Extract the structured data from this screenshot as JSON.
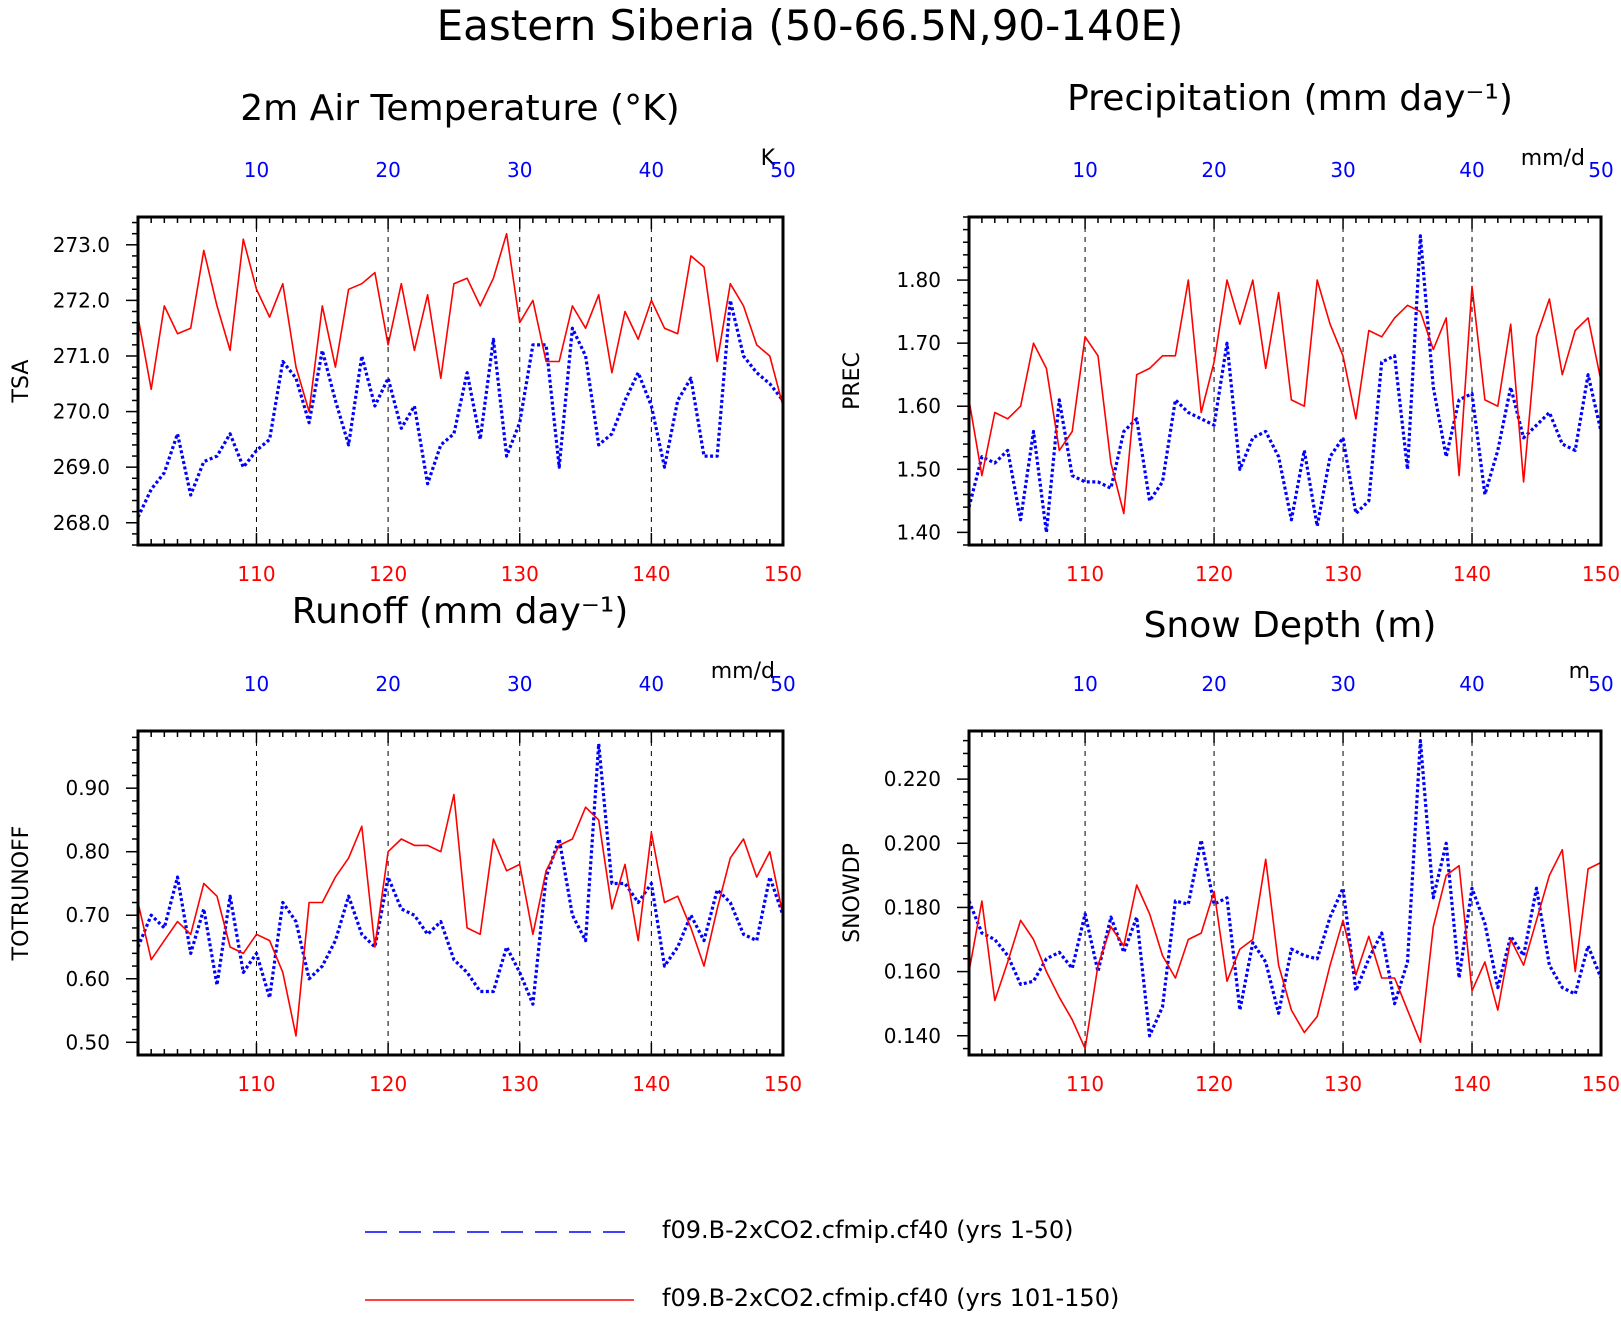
{
  "title": "Eastern Siberia (50-66.5N,90-140E)",
  "colors": {
    "blue_series": "#0000ff",
    "red_series": "#ff0000",
    "axis": "#000000"
  },
  "legend": [
    {
      "label": "f09.B-2xCO2.cfmip.cf40 (yrs 1-50)",
      "color": "#0000ff",
      "style": "dashed"
    },
    {
      "label": "f09.B-2xCO2.cfmip.cf40 (yrs 101-150)",
      "color": "#ff0000",
      "style": "solid"
    }
  ],
  "chart_data": [
    {
      "type": "line",
      "title": "2m Air Temperature (°K)",
      "ylabel": "TSA",
      "unit": "K",
      "x_bottom": {
        "range": [
          101,
          150
        ],
        "ticks": [
          "110",
          "120",
          "130",
          "140",
          "150"
        ]
      },
      "x_top": {
        "range": [
          1,
          50
        ],
        "ticks": [
          "10",
          "20",
          "30",
          "40",
          "50"
        ]
      },
      "ylim": [
        267.6,
        273.5
      ],
      "yticks": [
        "268.0",
        "269.0",
        "270.0",
        "271.0",
        "272.0",
        "273.0"
      ],
      "series": [
        {
          "color": "#0000ff",
          "style": "dotted",
          "values": [
            268.1,
            268.6,
            268.9,
            269.6,
            268.5,
            269.1,
            269.2,
            269.6,
            269.0,
            269.3,
            269.5,
            270.9,
            270.6,
            269.8,
            271.1,
            270.2,
            269.4,
            271.0,
            270.1,
            270.6,
            269.7,
            270.1,
            268.7,
            269.4,
            269.6,
            270.7,
            269.5,
            271.3,
            269.2,
            269.8,
            271.2,
            271.2,
            269.0,
            271.5,
            271.0,
            269.4,
            269.6,
            270.2,
            270.7,
            270.1,
            269.0,
            270.2,
            270.6,
            269.2,
            269.2,
            272.0,
            271.0,
            270.7,
            270.5,
            270.2
          ]
        },
        {
          "color": "#ff0000",
          "style": "solid",
          "values": [
            271.7,
            270.4,
            271.9,
            271.4,
            271.5,
            272.9,
            271.9,
            271.1,
            273.1,
            272.2,
            271.7,
            272.3,
            270.8,
            270.0,
            271.9,
            270.8,
            272.2,
            272.3,
            272.5,
            271.2,
            272.3,
            271.1,
            272.1,
            270.6,
            272.3,
            272.4,
            271.9,
            272.4,
            273.2,
            271.6,
            272.0,
            270.9,
            270.9,
            271.9,
            271.5,
            272.1,
            270.7,
            271.8,
            271.3,
            272.0,
            271.5,
            271.4,
            272.8,
            272.6,
            270.9,
            272.3,
            271.9,
            271.2,
            271.0,
            270.1
          ]
        }
      ]
    },
    {
      "type": "line",
      "title": "Precipitation (mm day⁻¹)",
      "ylabel": "PREC",
      "unit": "mm/d",
      "x_bottom": {
        "range": [
          101,
          150
        ],
        "ticks": [
          "110",
          "120",
          "130",
          "140",
          "150"
        ]
      },
      "x_top": {
        "range": [
          1,
          50
        ],
        "ticks": [
          "10",
          "20",
          "30",
          "40",
          "50"
        ]
      },
      "ylim": [
        1.38,
        1.9
      ],
      "yticks": [
        "1.40",
        "1.50",
        "1.60",
        "1.70",
        "1.80"
      ],
      "series": [
        {
          "color": "#0000ff",
          "style": "dotted",
          "values": [
            1.44,
            1.52,
            1.51,
            1.53,
            1.42,
            1.56,
            1.4,
            1.61,
            1.49,
            1.48,
            1.48,
            1.47,
            1.56,
            1.58,
            1.45,
            1.48,
            1.61,
            1.59,
            1.58,
            1.57,
            1.7,
            1.5,
            1.55,
            1.56,
            1.52,
            1.42,
            1.53,
            1.41,
            1.52,
            1.55,
            1.43,
            1.45,
            1.67,
            1.68,
            1.5,
            1.87,
            1.63,
            1.52,
            1.61,
            1.62,
            1.46,
            1.53,
            1.63,
            1.55,
            1.57,
            1.59,
            1.54,
            1.53,
            1.65,
            1.56
          ]
        },
        {
          "color": "#ff0000",
          "style": "solid",
          "values": [
            1.61,
            1.49,
            1.59,
            1.58,
            1.6,
            1.7,
            1.66,
            1.53,
            1.56,
            1.71,
            1.68,
            1.51,
            1.43,
            1.65,
            1.66,
            1.68,
            1.68,
            1.8,
            1.59,
            1.67,
            1.8,
            1.73,
            1.8,
            1.66,
            1.78,
            1.61,
            1.6,
            1.8,
            1.73,
            1.68,
            1.58,
            1.72,
            1.71,
            1.74,
            1.76,
            1.75,
            1.69,
            1.74,
            1.49,
            1.79,
            1.61,
            1.6,
            1.73,
            1.48,
            1.71,
            1.77,
            1.65,
            1.72,
            1.74,
            1.64
          ]
        }
      ]
    },
    {
      "type": "line",
      "title": "Runoff (mm day⁻¹)",
      "ylabel": "TOTRUNOFF",
      "unit": "mm/d",
      "x_bottom": {
        "range": [
          101,
          150
        ],
        "ticks": [
          "110",
          "120",
          "130",
          "140",
          "150"
        ]
      },
      "x_top": {
        "range": [
          1,
          50
        ],
        "ticks": [
          "10",
          "20",
          "30",
          "40",
          "50"
        ]
      },
      "ylim": [
        0.48,
        0.99
      ],
      "yticks": [
        "0.50",
        "0.60",
        "0.70",
        "0.80",
        "0.90"
      ],
      "series": [
        {
          "color": "#0000ff",
          "style": "dotted",
          "values": [
            0.65,
            0.7,
            0.68,
            0.76,
            0.64,
            0.71,
            0.59,
            0.73,
            0.61,
            0.64,
            0.57,
            0.72,
            0.69,
            0.6,
            0.62,
            0.66,
            0.73,
            0.67,
            0.65,
            0.76,
            0.71,
            0.7,
            0.67,
            0.69,
            0.63,
            0.61,
            0.58,
            0.58,
            0.65,
            0.61,
            0.56,
            0.76,
            0.82,
            0.7,
            0.66,
            0.97,
            0.75,
            0.75,
            0.72,
            0.75,
            0.62,
            0.65,
            0.7,
            0.66,
            0.74,
            0.72,
            0.67,
            0.66,
            0.76,
            0.7
          ]
        },
        {
          "color": "#ff0000",
          "style": "solid",
          "values": [
            0.72,
            0.63,
            0.66,
            0.69,
            0.67,
            0.75,
            0.73,
            0.65,
            0.64,
            0.67,
            0.66,
            0.61,
            0.51,
            0.72,
            0.72,
            0.76,
            0.79,
            0.84,
            0.65,
            0.8,
            0.82,
            0.81,
            0.81,
            0.8,
            0.89,
            0.68,
            0.67,
            0.82,
            0.77,
            0.78,
            0.67,
            0.77,
            0.81,
            0.82,
            0.87,
            0.85,
            0.71,
            0.78,
            0.66,
            0.83,
            0.72,
            0.73,
            0.68,
            0.62,
            0.71,
            0.79,
            0.82,
            0.76,
            0.8,
            0.7
          ]
        }
      ]
    },
    {
      "type": "line",
      "title": "Snow Depth (m)",
      "ylabel": "SNOWDP",
      "unit": "m",
      "x_bottom": {
        "range": [
          101,
          150
        ],
        "ticks": [
          "110",
          "120",
          "130",
          "140",
          "150"
        ]
      },
      "x_top": {
        "range": [
          1,
          50
        ],
        "ticks": [
          "10",
          "20",
          "30",
          "40",
          "50"
        ]
      },
      "ylim": [
        0.134,
        0.235
      ],
      "yticks": [
        "0.140",
        "0.160",
        "0.180",
        "0.200",
        "0.220"
      ],
      "series": [
        {
          "color": "#0000ff",
          "style": "dotted",
          "values": [
            0.182,
            0.172,
            0.17,
            0.165,
            0.156,
            0.157,
            0.164,
            0.166,
            0.161,
            0.178,
            0.16,
            0.177,
            0.166,
            0.177,
            0.14,
            0.149,
            0.182,
            0.181,
            0.201,
            0.181,
            0.183,
            0.148,
            0.169,
            0.163,
            0.147,
            0.167,
            0.165,
            0.164,
            0.177,
            0.186,
            0.154,
            0.164,
            0.172,
            0.15,
            0.163,
            0.232,
            0.183,
            0.2,
            0.158,
            0.186,
            0.175,
            0.155,
            0.171,
            0.165,
            0.186,
            0.162,
            0.155,
            0.153,
            0.168,
            0.158
          ]
        },
        {
          "color": "#ff0000",
          "style": "solid",
          "values": [
            0.16,
            0.182,
            0.151,
            0.163,
            0.176,
            0.17,
            0.16,
            0.152,
            0.145,
            0.136,
            0.162,
            0.174,
            0.168,
            0.187,
            0.178,
            0.165,
            0.158,
            0.17,
            0.172,
            0.185,
            0.157,
            0.167,
            0.17,
            0.195,
            0.162,
            0.148,
            0.141,
            0.146,
            0.162,
            0.176,
            0.159,
            0.171,
            0.158,
            0.158,
            0.148,
            0.138,
            0.174,
            0.19,
            0.193,
            0.154,
            0.163,
            0.148,
            0.17,
            0.162,
            0.176,
            0.19,
            0.198,
            0.16,
            0.192,
            0.194
          ]
        }
      ]
    }
  ]
}
